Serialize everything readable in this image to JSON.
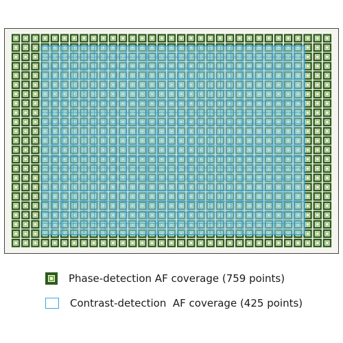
{
  "diagram": {
    "frame_color": "#f5f5ef",
    "frame_border_color": "#444444",
    "phase_detection": {
      "point_count": 759,
      "grid_columns": 33,
      "grid_rows": 23,
      "outer_color": "#2d5a1e",
      "inner_color": "#7cb342"
    },
    "contrast_detection": {
      "point_count": 425,
      "grid_columns": 25,
      "grid_rows": 17,
      "fill_color": "#8ed3f0",
      "line_color": "#2f9fd8"
    }
  },
  "legend": {
    "phase_label": "Phase-detection AF coverage (759 points)",
    "contrast_label": "Contrast-detection  AF coverage (425 points)"
  }
}
